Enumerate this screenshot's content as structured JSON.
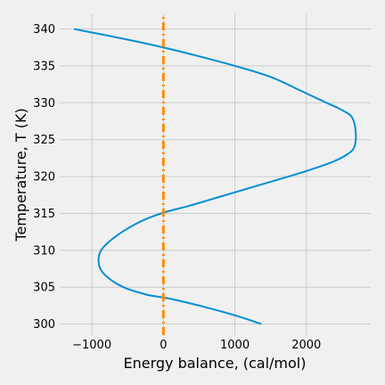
{
  "chart_data": {
    "type": "line",
    "title": "",
    "xlabel": "Energy balance, (cal/mol)",
    "ylabel": "Temperature,  T (K)",
    "xlim": [
      -1450,
      2900
    ],
    "ylim": [
      298.5,
      342
    ],
    "xticks": [
      -1000,
      0,
      1000,
      2000
    ],
    "xtick_labels": [
      "−1000",
      "0",
      "1000",
      "2000"
    ],
    "yticks": [
      300,
      305,
      310,
      315,
      320,
      325,
      330,
      335,
      340
    ],
    "ytick_labels": [
      "300",
      "305",
      "310",
      "315",
      "320",
      "325",
      "330",
      "335",
      "340"
    ],
    "grid": true,
    "legend": "none",
    "series": [
      {
        "color": "#008fd5",
        "style": "solid",
        "x": [
          1370,
          1060,
          700,
          290,
          0,
          -240,
          -560,
          -800,
          -900,
          -870,
          -650,
          -320,
          0,
          350,
          700,
          1050,
          1400,
          1750,
          2080,
          2370,
          2570,
          2670,
          2690,
          2640,
          2500,
          2280,
          1950,
          1500,
          1000,
          500,
          0,
          -520,
          -1250
        ],
        "y": [
          300,
          301,
          302,
          303,
          303.6,
          304,
          305,
          306.5,
          308,
          310,
          312,
          313.9,
          315.1,
          316,
          317,
          318,
          319,
          320,
          321,
          322,
          323,
          324,
          326,
          328,
          329,
          330,
          331.5,
          333.5,
          335,
          336.3,
          337.5,
          338.6,
          340
        ]
      },
      {
        "color": "#e5ae38",
        "stroke": "#ff8c00",
        "style": "dashdot",
        "x": [
          0,
          0
        ],
        "y": [
          298.5,
          342
        ]
      }
    ]
  }
}
